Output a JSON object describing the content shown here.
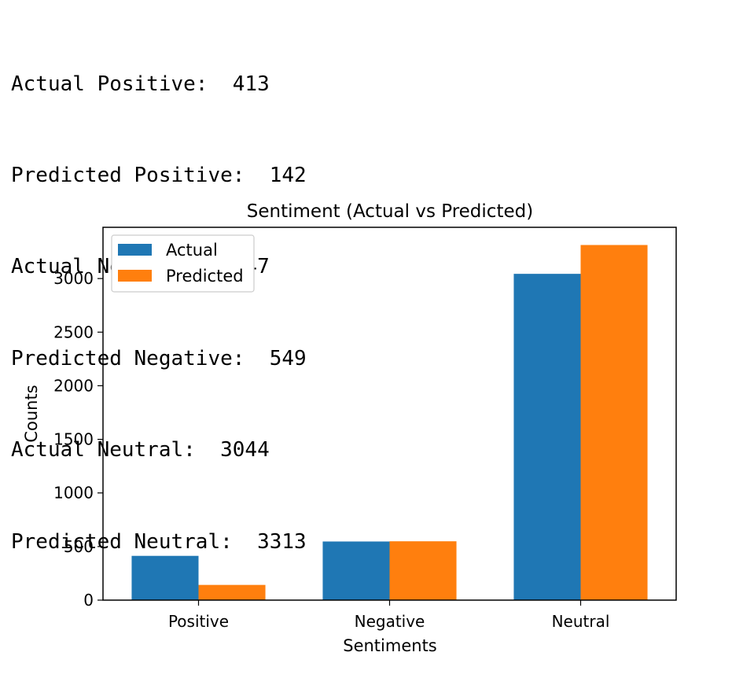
{
  "console": {
    "lines": [
      {
        "label": "Actual Positive:",
        "value": "413"
      },
      {
        "label": "Predicted Positive:",
        "value": "142"
      },
      {
        "label": "Actual Negative:",
        "value": "547"
      },
      {
        "label": "Predicted Negative:",
        "value": "549"
      },
      {
        "label": "Actual Neutral:",
        "value": "3044"
      },
      {
        "label": "Predicted Neutral:",
        "value": "3313"
      }
    ]
  },
  "chart_data": {
    "type": "bar",
    "title": "Sentiment (Actual vs Predicted)",
    "xlabel": "Sentiments",
    "ylabel": "Counts",
    "categories": [
      "Positive",
      "Negative",
      "Neutral"
    ],
    "series": [
      {
        "name": "Actual",
        "values": [
          413,
          547,
          3044
        ],
        "color": "#1f77b4"
      },
      {
        "name": "Predicted",
        "values": [
          142,
          549,
          3313
        ],
        "color": "#ff7f0e"
      }
    ],
    "ylim": [
      0,
      3478
    ],
    "yticks": [
      0,
      500,
      1000,
      1500,
      2000,
      2500,
      3000
    ],
    "legend": "top-left",
    "grid": false
  }
}
